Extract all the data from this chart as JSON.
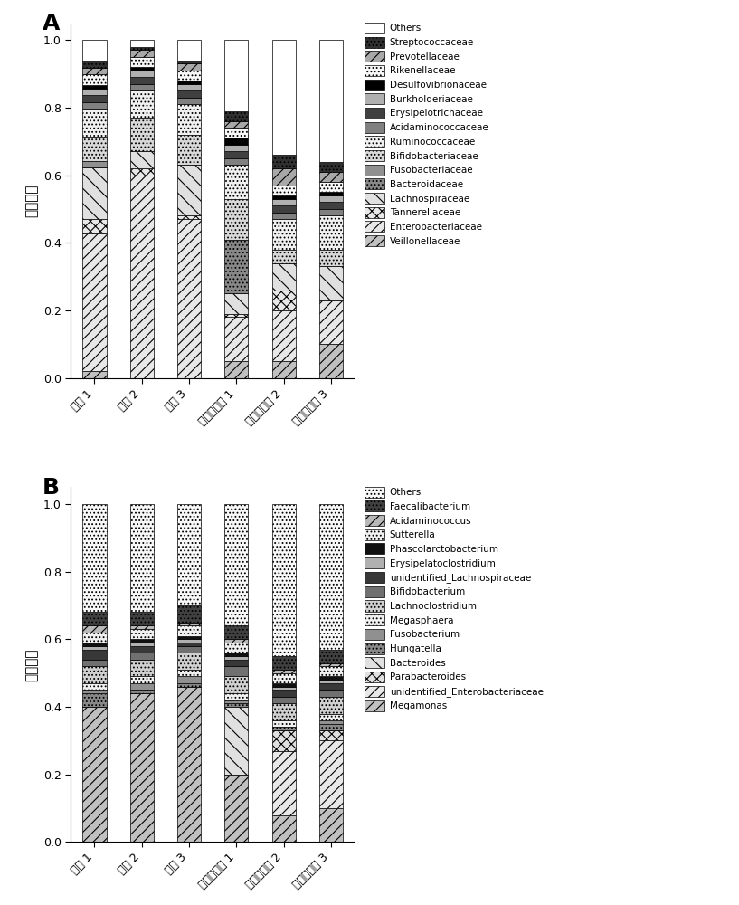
{
  "panel_A": {
    "xlabel_labels": [
      "菊簹 1",
      "菊簹 2",
      "菊簹 3",
      "结冷胶寡糖 1",
      "结冷胶寡糖 2",
      "结冷胶寡糖 3"
    ],
    "ylabel": "相对丰度",
    "legend_labels": [
      "Others",
      "Streptococcaceae",
      "Prevotellaceae",
      "Rikenellaceae",
      "Desulfovibrionaceae",
      "Burkholderiaceae",
      "Erysipelotrichaceae",
      "Acidaminococcaceae",
      "Ruminococcaceae",
      "Bifidobacteriaceae",
      "Fusobacteriaceae",
      "Bacteroidaceae",
      "Lachnospiraceae",
      "Tannerellaceae",
      "Enterobacteriaceae",
      "Veillonellaceae"
    ],
    "data": {
      "Veillonellaceae": [
        0.02,
        0.0,
        0.0,
        0.05,
        0.05,
        0.1
      ],
      "Enterobacteriaceae": [
        0.4,
        0.6,
        0.47,
        0.13,
        0.15,
        0.13
      ],
      "Tannerellaceae": [
        0.04,
        0.02,
        0.01,
        0.01,
        0.06,
        0.0
      ],
      "Lachnospiraceae": [
        0.15,
        0.05,
        0.15,
        0.06,
        0.08,
        0.1
      ],
      "Bacteroidaceae": [
        0.0,
        0.0,
        0.0,
        0.16,
        0.0,
        0.0
      ],
      "Fusobacteriaceae": [
        0.02,
        0.0,
        0.0,
        0.0,
        0.0,
        0.0
      ],
      "Bifidobacteriaceae": [
        0.07,
        0.1,
        0.09,
        0.12,
        0.04,
        0.05
      ],
      "Ruminococcaceae": [
        0.08,
        0.08,
        0.09,
        0.1,
        0.09,
        0.1
      ],
      "Acidaminococcaceae": [
        0.02,
        0.02,
        0.02,
        0.02,
        0.02,
        0.02
      ],
      "Erysipelotrichaceae": [
        0.02,
        0.02,
        0.02,
        0.02,
        0.02,
        0.02
      ],
      "Burkholderiaceae": [
        0.02,
        0.02,
        0.02,
        0.02,
        0.02,
        0.02
      ],
      "Desulfovibrionaceae": [
        0.01,
        0.01,
        0.01,
        0.02,
        0.01,
        0.01
      ],
      "Rikenellaceae": [
        0.03,
        0.03,
        0.03,
        0.03,
        0.03,
        0.03
      ],
      "Prevotellaceae": [
        0.02,
        0.02,
        0.02,
        0.02,
        0.05,
        0.03
      ],
      "Streptococcaceae": [
        0.02,
        0.01,
        0.01,
        0.03,
        0.04,
        0.03
      ],
      "Others": [
        0.06,
        0.02,
        0.06,
        0.21,
        0.34,
        0.36
      ]
    }
  },
  "panel_B": {
    "xlabel_labels": [
      "菊簹 1",
      "菊簹 2",
      "菊簹 3",
      "结冷胶寡糖 1",
      "结冷胶寡糖 2",
      "结冷胶寡糖 3"
    ],
    "ylabel": "相对丰度",
    "legend_labels": [
      "Others",
      "Faecalibacterium",
      "Acidaminococcus",
      "Sutterella",
      "Phascolarctobacterium",
      "Erysipelatoclostridium",
      "unidentified_Lachnospiraceae",
      "Bifidobacterium",
      "Lachnoclostridium",
      "Megasphaera",
      "Fusobacterium",
      "Hungatella",
      "Bacteroides",
      "Parabacteroides",
      "unidentified_Enterobacteriaceae",
      "Megamonas"
    ],
    "data": {
      "Megamonas": [
        0.4,
        0.44,
        0.46,
        0.2,
        0.08,
        0.1
      ],
      "unidentified_Enterobacteriaceae": [
        0.0,
        0.0,
        0.0,
        0.0,
        0.19,
        0.2
      ],
      "Parabacteroides": [
        0.0,
        0.0,
        0.0,
        0.0,
        0.06,
        0.03
      ],
      "Bacteroides": [
        0.0,
        0.0,
        0.0,
        0.2,
        0.0,
        0.0
      ],
      "Hungatella": [
        0.04,
        0.01,
        0.01,
        0.01,
        0.01,
        0.02
      ],
      "Fusobacterium": [
        0.01,
        0.02,
        0.02,
        0.01,
        0.0,
        0.01
      ],
      "Megasphaera": [
        0.02,
        0.02,
        0.02,
        0.02,
        0.02,
        0.02
      ],
      "Lachnoclostridium": [
        0.05,
        0.05,
        0.05,
        0.05,
        0.05,
        0.05
      ],
      "Bifidobacterium": [
        0.02,
        0.02,
        0.02,
        0.03,
        0.02,
        0.02
      ],
      "unidentified_Lachnospiraceae": [
        0.03,
        0.02,
        0.01,
        0.02,
        0.02,
        0.02
      ],
      "Erysipelatoclostridium": [
        0.01,
        0.01,
        0.01,
        0.01,
        0.01,
        0.01
      ],
      "Phascolarctobacterium": [
        0.01,
        0.01,
        0.01,
        0.01,
        0.01,
        0.01
      ],
      "Sutterella": [
        0.03,
        0.03,
        0.03,
        0.03,
        0.03,
        0.03
      ],
      "Acidaminococcus": [
        0.02,
        0.01,
        0.01,
        0.01,
        0.01,
        0.01
      ],
      "Faecalibacterium": [
        0.04,
        0.04,
        0.05,
        0.04,
        0.04,
        0.04
      ],
      "Others": [
        0.32,
        0.32,
        0.3,
        0.36,
        0.45,
        0.43
      ]
    }
  }
}
